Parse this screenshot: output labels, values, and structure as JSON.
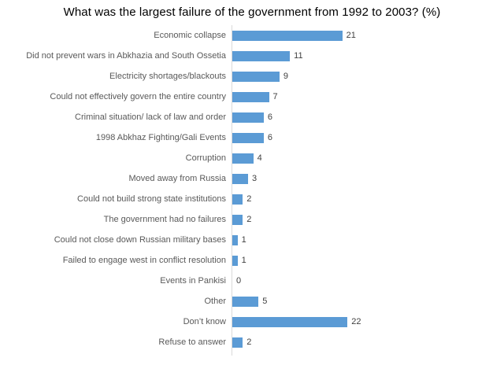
{
  "chart_data": {
    "type": "bar",
    "orientation": "horizontal",
    "title": "What was the largest failure of the government from 1992 to 2003? (%)",
    "categories": [
      "Economic collapse",
      "Did not prevent wars in Abkhazia and South Ossetia",
      "Electricity shortages/blackouts",
      "Could not effectively govern the entire country",
      "Criminal situation/ lack of law and order",
      "1998 Abkhaz Fighting/Gali Events",
      "Corruption",
      "Moved away from Russia",
      "Could not build strong state institutions",
      "The government had no failures",
      "Could not close down Russian military bases",
      "Failed to engage west in conflict resolution",
      "Events in Pankisi",
      "Other",
      "Don’t know",
      "Refuse to answer"
    ],
    "values": [
      21,
      11,
      9,
      7,
      6,
      6,
      4,
      3,
      2,
      2,
      1,
      1,
      0,
      5,
      22,
      2
    ],
    "data_labels": true,
    "legend": false,
    "grid": false,
    "xlim": [
      0,
      25
    ],
    "colors": {
      "bar": "#5B9BD5",
      "category_label": "#595959",
      "value_label": "#404040",
      "axis_line": "#D9D9D9",
      "title": "#000000",
      "background": "#FFFFFF"
    }
  }
}
